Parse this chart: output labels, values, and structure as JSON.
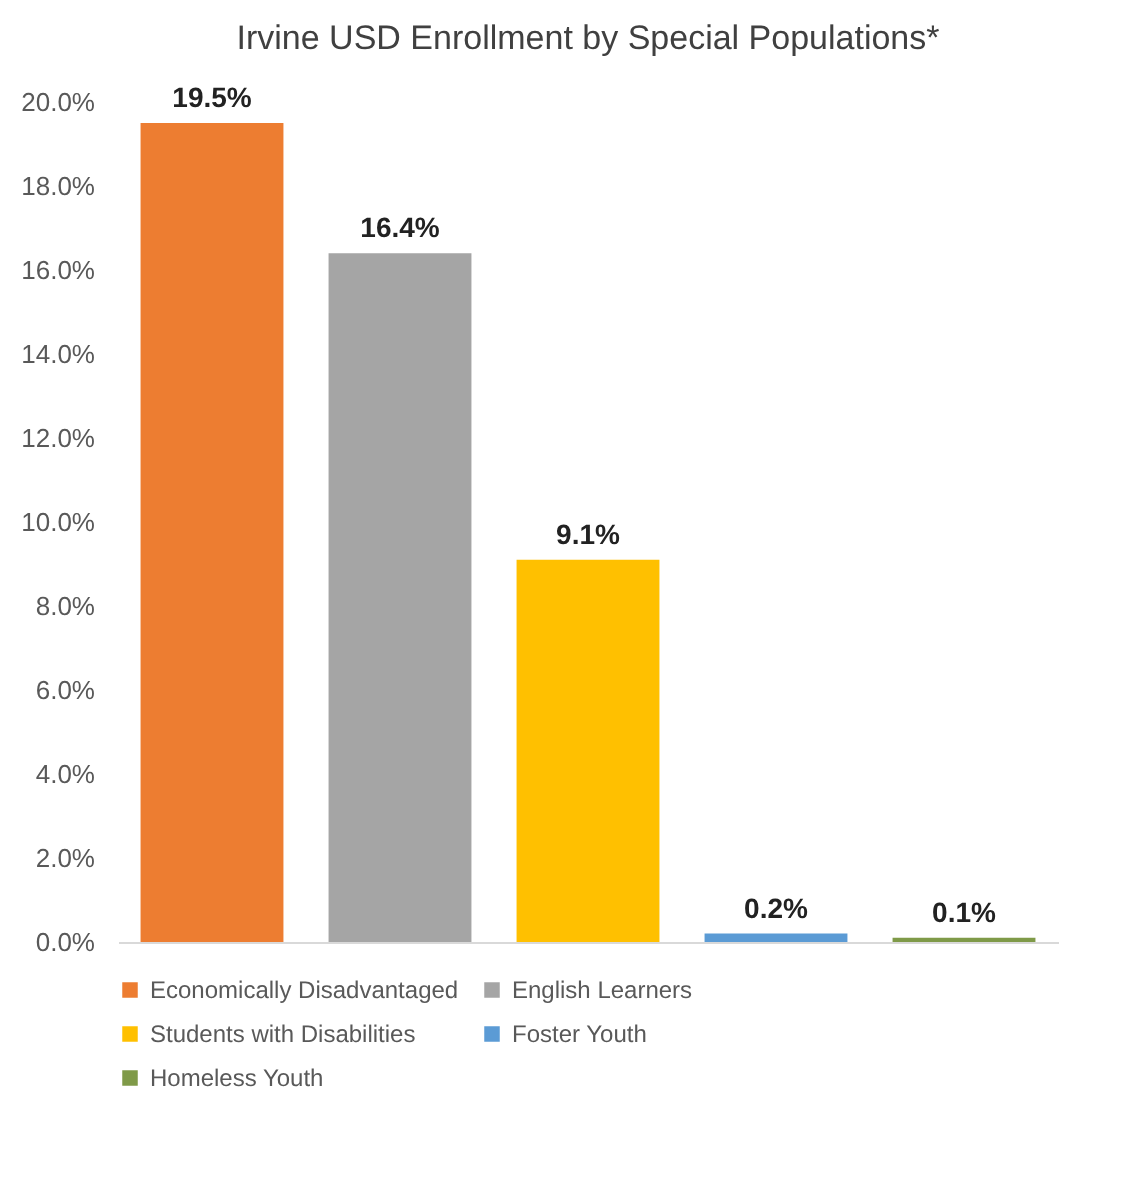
{
  "chart_data": {
    "type": "bar",
    "title": "Irvine USD Enrollment by Special Populations*",
    "categories": [
      null,
      null,
      null,
      null,
      null
    ],
    "series": [
      {
        "name": "Economically Disadvantaged",
        "color": "#ed7d31",
        "values": [
          19.5,
          null,
          null,
          null,
          null
        ],
        "value_labels": [
          "19.5%",
          null,
          null,
          null,
          null
        ]
      },
      {
        "name": "English Learners",
        "color": "#a5a5a5",
        "values": [
          null,
          16.4,
          null,
          null,
          null
        ],
        "value_labels": [
          null,
          "16.4%",
          null,
          null,
          null
        ]
      },
      {
        "name": "Students with Disabilities",
        "color": "#ffc000",
        "values": [
          null,
          null,
          9.1,
          null,
          null
        ],
        "value_labels": [
          null,
          null,
          "9.1%",
          null,
          null
        ]
      },
      {
        "name": "Foster Youth",
        "color": "#5b9bd5",
        "values": [
          null,
          null,
          null,
          0.2,
          null
        ],
        "value_labels": [
          null,
          null,
          null,
          "0.2%",
          null
        ]
      },
      {
        "name": "Homeless Youth",
        "color": "#7f9a48",
        "values": [
          null,
          null,
          null,
          null,
          0.1
        ],
        "value_labels": [
          null,
          null,
          null,
          null,
          "0.1%"
        ]
      }
    ],
    "ylim": [
      0,
      20
    ],
    "yticks": [
      {
        "value": 0,
        "label": "0.0%"
      },
      {
        "value": 2,
        "label": "2.0%"
      },
      {
        "value": 4,
        "label": "4.0%"
      },
      {
        "value": 6,
        "label": "6.0%"
      },
      {
        "value": 8,
        "label": "8.0%"
      },
      {
        "value": 10,
        "label": "10.0%"
      },
      {
        "value": 12,
        "label": "12.0%"
      },
      {
        "value": 14,
        "label": "14.0%"
      },
      {
        "value": 16,
        "label": "16.0%"
      },
      {
        "value": 18,
        "label": "18.0%"
      },
      {
        "value": 20,
        "label": "20.0%"
      }
    ],
    "legend": "bottom"
  }
}
